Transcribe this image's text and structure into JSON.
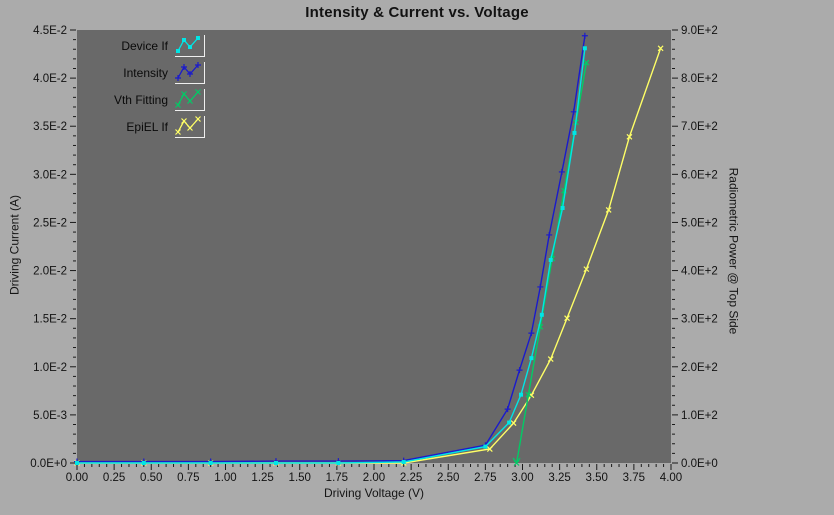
{
  "title": "Intensity & Current vs. Voltage",
  "colors": {
    "window_background": "#ABABAB",
    "plot_background": "#696969",
    "tick_color": "#1a1a1a",
    "text_color": "#121212",
    "device_if": "#00E6E6",
    "intensity": "#1A1ACC",
    "vth_fitting": "#00CC66",
    "epiel_if": "#FFFF66"
  },
  "chart_data": {
    "type": "line",
    "title": "Intensity & Current vs. Voltage",
    "grid": false,
    "legend_position": "top-left-inside",
    "x_axis": {
      "label": "Driving Voltage (V)",
      "min": 0,
      "max": 4,
      "major_step": 0.25,
      "minor_step": 0.05,
      "tick_labels": [
        "0.00",
        "0.25",
        "0.50",
        "0.75",
        "1.00",
        "1.25",
        "1.50",
        "1.75",
        "2.00",
        "2.25",
        "2.50",
        "2.75",
        "3.00",
        "3.25",
        "3.50",
        "3.75",
        "4.00"
      ]
    },
    "y_left": {
      "label": "Driving Current (A)",
      "min": 0,
      "max": 0.045,
      "major_step": 0.005,
      "minor_step": 0.001,
      "tick_labels": [
        "0.0E+0",
        "5.0E-3",
        "1.0E-2",
        "1.5E-2",
        "2.0E-2",
        "2.5E-2",
        "3.0E-2",
        "3.5E-2",
        "4.0E-2",
        "4.5E-2"
      ]
    },
    "y_right": {
      "label": "Radiometric Power @ Top Side",
      "min": 0,
      "max": 900,
      "major_step": 100,
      "minor_step": 20,
      "tick_labels": [
        "0.0E+0",
        "1.0E+2",
        "2.0E+2",
        "3.0E+2",
        "4.0E+2",
        "5.0E+2",
        "6.0E+2",
        "7.0E+2",
        "8.0E+2",
        "9.0E+2"
      ]
    },
    "series": [
      {
        "name": "Device If",
        "color": "#00E6E6",
        "axis": "left",
        "marker": "square",
        "points": [
          [
            0,
            0
          ],
          [
            0.45,
            0
          ],
          [
            0.9,
            0
          ],
          [
            1.34,
            0
          ],
          [
            1.76,
            0
          ],
          [
            2.2,
            0.0001
          ],
          [
            2.75,
            0.0017
          ],
          [
            2.91,
            0.0042
          ],
          [
            2.99,
            0.0071
          ],
          [
            3.06,
            0.0109
          ],
          [
            3.13,
            0.0154
          ],
          [
            3.19,
            0.0211
          ],
          [
            3.27,
            0.0265
          ],
          [
            3.35,
            0.0343
          ],
          [
            3.42,
            0.0431
          ]
        ]
      },
      {
        "name": "Intensity",
        "color": "#1A1ACC",
        "axis": "right",
        "marker": "plus",
        "points": [
          [
            0,
            3
          ],
          [
            0.45,
            3
          ],
          [
            0.9,
            3
          ],
          [
            1.34,
            4
          ],
          [
            1.76,
            4
          ],
          [
            2.2,
            5
          ],
          [
            2.75,
            37
          ],
          [
            2.9,
            112
          ],
          [
            2.98,
            193
          ],
          [
            3.06,
            270
          ],
          [
            3.12,
            366
          ],
          [
            3.18,
            474
          ],
          [
            3.265,
            605
          ],
          [
            3.345,
            730
          ],
          [
            3.42,
            888
          ]
        ]
      },
      {
        "name": "Vth Fitting",
        "color": "#00CC66",
        "axis": "right",
        "marker": "x",
        "arrow_at_start": true,
        "points": [
          [
            2.96,
            0
          ],
          [
            3.04,
            142
          ],
          [
            3.12,
            283
          ],
          [
            3.2,
            425
          ],
          [
            3.28,
            566
          ],
          [
            3.36,
            708
          ],
          [
            3.43,
            832
          ]
        ]
      },
      {
        "name": "EpiEL If",
        "color": "#FFFF66",
        "axis": "right",
        "marker": "x",
        "points": [
          [
            0,
            0
          ],
          [
            0.45,
            0
          ],
          [
            0.9,
            0
          ],
          [
            1.34,
            0
          ],
          [
            1.76,
            0
          ],
          [
            2.2,
            0
          ],
          [
            2.78,
            29
          ],
          [
            2.94,
            83
          ],
          [
            3.06,
            141
          ],
          [
            3.19,
            216
          ],
          [
            3.3,
            301
          ],
          [
            3.43,
            403
          ],
          [
            3.58,
            526
          ],
          [
            3.72,
            678
          ],
          [
            3.93,
            862
          ]
        ]
      }
    ]
  }
}
